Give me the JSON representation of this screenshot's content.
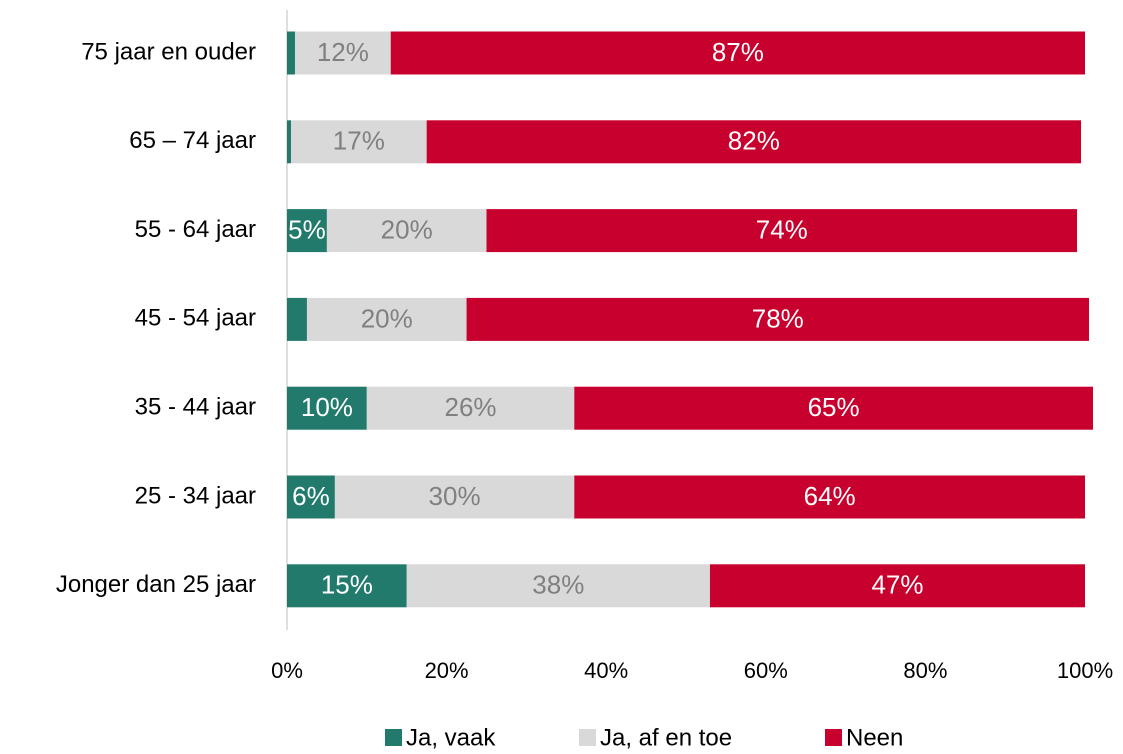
{
  "chart_data": {
    "type": "stacked-bar-horizontal",
    "categories": [
      "75 jaar en ouder",
      "65 – 74 jaar",
      "55 - 64 jaar",
      "45 - 54 jaar",
      "35 - 44 jaar",
      "25 - 34 jaar",
      "Jonger dan 25 jaar"
    ],
    "series": [
      {
        "name": "Ja, vaak",
        "color": "#217a6b",
        "label_color": "#ffffff",
        "values": [
          1,
          0.5,
          5,
          2.5,
          10,
          6,
          15
        ],
        "value_labels": [
          null,
          null,
          "5%",
          null,
          "10%",
          "6%",
          "15%"
        ]
      },
      {
        "name": "Ja, af en toe",
        "color": "#d9d9d9",
        "label_color": "#808080",
        "values": [
          12,
          17,
          20,
          20,
          26,
          30,
          38
        ],
        "value_labels": [
          "12%",
          "17%",
          "20%",
          "20%",
          "26%",
          "30%",
          "38%"
        ]
      },
      {
        "name": "Neen",
        "color": "#c8002d",
        "label_color": "#ffffff",
        "values": [
          87,
          82,
          74,
          78,
          65,
          64,
          47
        ],
        "value_labels": [
          "87%",
          "82%",
          "74%",
          "78%",
          "65%",
          "64%",
          "47%"
        ]
      }
    ],
    "xlim": [
      0,
      100
    ],
    "xticks": [
      {
        "value": 0,
        "label": "0%"
      },
      {
        "value": 20,
        "label": "20%"
      },
      {
        "value": 40,
        "label": "40%"
      },
      {
        "value": 60,
        "label": "60%"
      },
      {
        "value": 80,
        "label": "80%"
      },
      {
        "value": 100,
        "label": "100%"
      }
    ],
    "grid": false,
    "legend": "bottom"
  }
}
